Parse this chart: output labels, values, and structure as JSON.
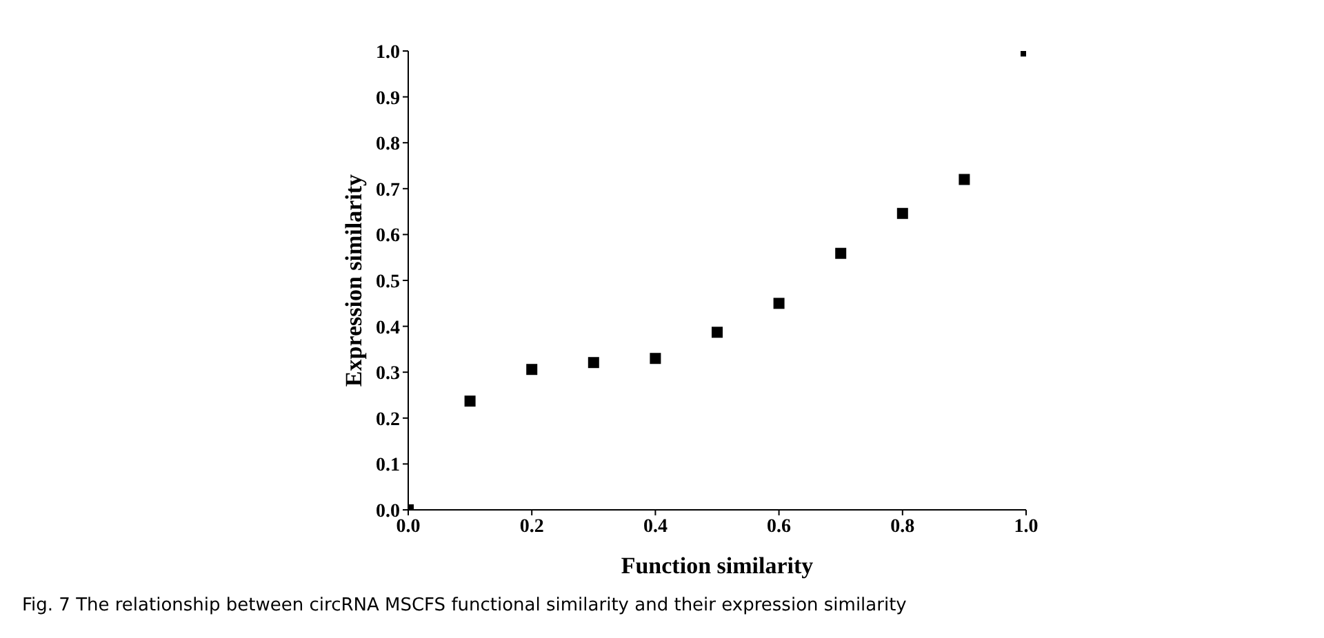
{
  "chart_data": {
    "type": "scatter",
    "xlabel": "Function similarity",
    "ylabel": "Expression similarity",
    "x": [
      0,
      0.1,
      0.2,
      0.3,
      0.4,
      0.5,
      0.6,
      0.7,
      0.8,
      0.9,
      1.0
    ],
    "values": [
      0,
      0.237,
      0.306,
      0.321,
      0.33,
      0.387,
      0.45,
      0.559,
      0.646,
      0.72,
      1.0
    ],
    "color": "#000000",
    "marker": "square",
    "xlim": [
      0,
      1
    ],
    "ylim": [
      0,
      1
    ],
    "xticks": [
      {
        "value": 0,
        "label": "0.0"
      },
      0.2,
      0.4,
      0.6,
      0.8,
      {
        "value": 1,
        "label": "1.0"
      }
    ],
    "yticks": [
      {
        "value": 0,
        "label": "0.0"
      },
      0.1,
      0.2,
      0.3,
      0.4,
      0.5,
      0.6,
      0.7,
      0.8,
      0.9,
      {
        "value": 1,
        "label": "1.0"
      }
    ],
    "grid": false,
    "annotations": [
      "Fig. 7  The relationship between circRNA MSCFS functional similarity and their expression similarity"
    ]
  }
}
